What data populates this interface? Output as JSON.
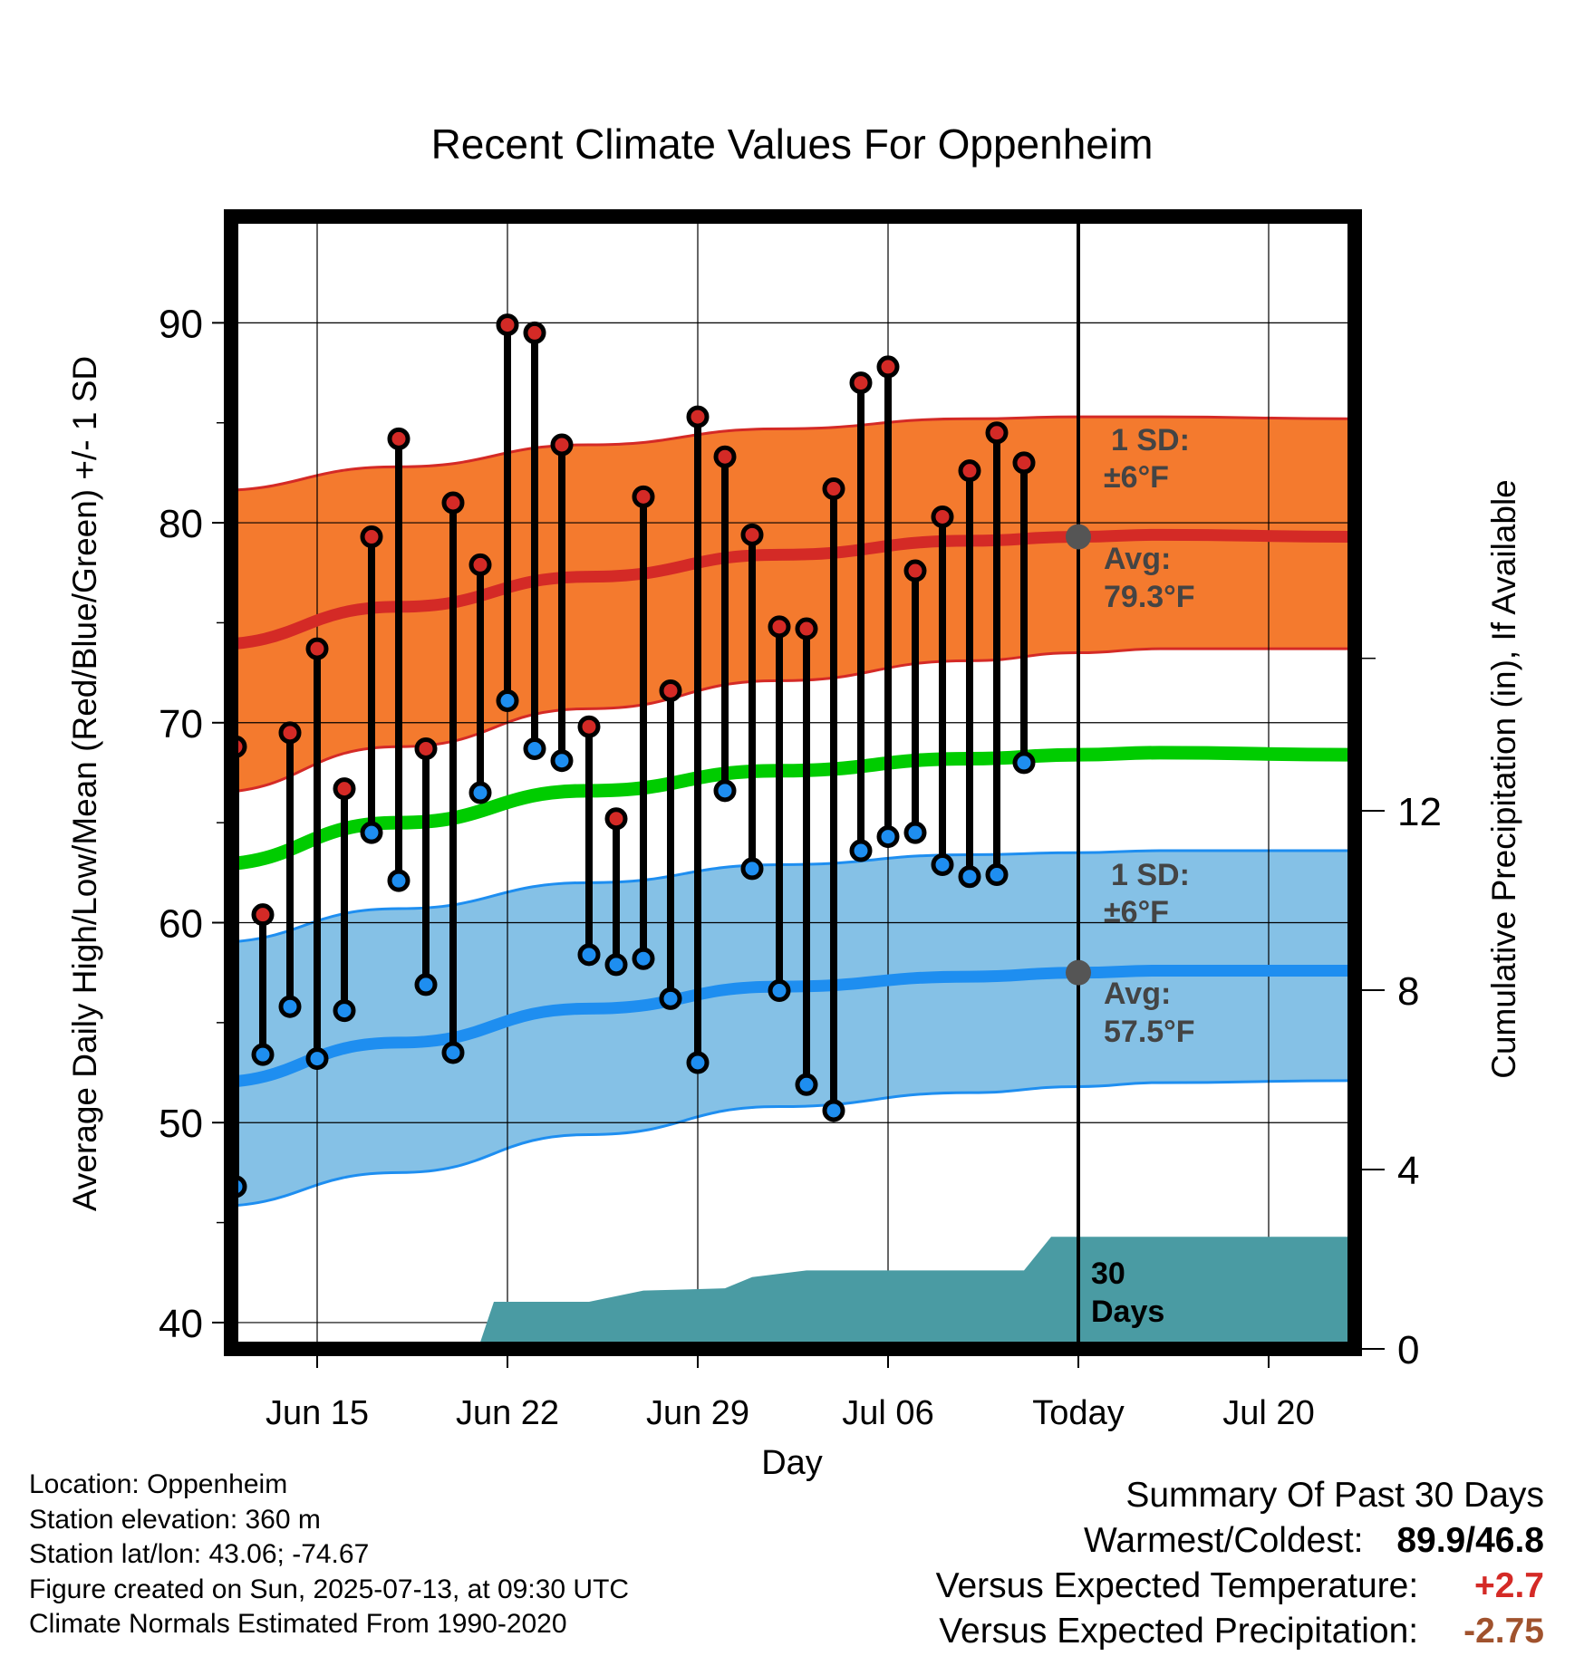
{
  "title": "Recent Climate Values For Oppenheim",
  "colors": {
    "high_band": "#F47A2E",
    "high_avg": "#D42A26",
    "low_band": "#85C1E6",
    "low_avg": "#1E8EF0",
    "mean_avg": "#00CC00",
    "precip_fill": "#4A9BA3",
    "high_marker": "#D42A26",
    "low_marker": "#1E8EF0",
    "annotation_text": "#444444",
    "temp_anomaly": "#D42A26",
    "precip_anomaly": "#A0522D"
  },
  "chart_data": {
    "type": "line",
    "title": "Recent Climate Values For Oppenheim",
    "xlabel": "Day",
    "ylabel": "Average Daily High/Low/Mean (Red/Blue/Green) +/- 1 SD",
    "y2label": "Cumulative Precipitation (in), If Available",
    "ylim": [
      39,
      95
    ],
    "y2lim": [
      0,
      25
    ],
    "xlim": [
      "2025-06-11",
      "2025-07-23"
    ],
    "grid": true,
    "x_ticks": [
      {
        "date": "2025-06-15",
        "label": "Jun 15"
      },
      {
        "date": "2025-06-22",
        "label": "Jun 22"
      },
      {
        "date": "2025-06-29",
        "label": "Jun 29"
      },
      {
        "date": "2025-07-06",
        "label": "Jul 06"
      },
      {
        "date": "2025-07-13",
        "label": "Today"
      },
      {
        "date": "2025-07-20",
        "label": "Jul 20"
      }
    ],
    "y_ticks": [
      40,
      50,
      60,
      70,
      80,
      90
    ],
    "y2_ticks": [
      0,
      4,
      8,
      12
    ],
    "today": "2025-07-13",
    "normals": {
      "dates": [
        "2025-06-11",
        "2025-06-18",
        "2025-06-25",
        "2025-07-02",
        "2025-07-09",
        "2025-07-13",
        "2025-07-16",
        "2025-07-23"
      ],
      "high_avg": [
        73.9,
        75.8,
        77.3,
        78.4,
        79.1,
        79.3,
        79.4,
        79.3
      ],
      "high_sd_upper": [
        81.6,
        82.8,
        83.9,
        84.7,
        85.2,
        85.3,
        85.3,
        85.2
      ],
      "high_sd_lower": [
        66.5,
        68.8,
        70.7,
        72.1,
        73.1,
        73.5,
        73.7,
        73.7
      ],
      "mean_avg": [
        62.9,
        65.0,
        66.6,
        67.6,
        68.2,
        68.4,
        68.5,
        68.4
      ],
      "low_avg": [
        52.0,
        54.0,
        55.7,
        56.8,
        57.3,
        57.5,
        57.6,
        57.6
      ],
      "low_sd_upper": [
        59.0,
        60.7,
        62.0,
        62.9,
        63.4,
        63.5,
        63.6,
        63.6
      ],
      "low_sd_lower": [
        45.8,
        47.5,
        49.4,
        50.8,
        51.5,
        51.8,
        52.0,
        52.1
      ]
    },
    "daily": {
      "dates": [
        "2025-06-12",
        "2025-06-13",
        "2025-06-14",
        "2025-06-15",
        "2025-06-16",
        "2025-06-17",
        "2025-06-18",
        "2025-06-19",
        "2025-06-20",
        "2025-06-21",
        "2025-06-22",
        "2025-06-23",
        "2025-06-24",
        "2025-06-25",
        "2025-06-26",
        "2025-06-27",
        "2025-06-28",
        "2025-06-29",
        "2025-06-30",
        "2025-07-01",
        "2025-07-02",
        "2025-07-03",
        "2025-07-04",
        "2025-07-05",
        "2025-07-06",
        "2025-07-07",
        "2025-07-08",
        "2025-07-09",
        "2025-07-10",
        "2025-07-11",
        "2025-07-12"
      ],
      "high": [
        68.8,
        60.4,
        69.5,
        73.7,
        66.7,
        79.3,
        84.2,
        68.7,
        81.0,
        77.9,
        89.9,
        89.5,
        83.9,
        69.8,
        65.2,
        81.3,
        71.6,
        85.3,
        83.3,
        79.4,
        74.8,
        74.7,
        81.7,
        87.0,
        87.8,
        77.6,
        80.3,
        82.6,
        84.5,
        83.0,
        null
      ],
      "low": [
        46.8,
        53.4,
        55.8,
        53.2,
        55.6,
        64.5,
        62.1,
        56.9,
        53.5,
        66.5,
        71.1,
        68.7,
        68.1,
        58.4,
        57.9,
        58.2,
        56.2,
        53.0,
        66.6,
        62.7,
        56.6,
        51.9,
        50.6,
        63.6,
        64.3,
        64.5,
        62.9,
        62.3,
        62.4,
        68.0,
        null
      ]
    },
    "precip_cumulative": {
      "dates": [
        "2025-06-11",
        "2025-06-15",
        "2025-06-15.5",
        "2025-06-17",
        "2025-06-20",
        "2025-06-21",
        "2025-06-21.5",
        "2025-06-25",
        "2025-06-27",
        "2025-06-30",
        "2025-07-01",
        "2025-07-03",
        "2025-07-05",
        "2025-07-11",
        "2025-07-12",
        "2025-07-23"
      ],
      "values": [
        0.0,
        0.0,
        0.05,
        0.1,
        0.15,
        0.15,
        1.05,
        1.05,
        1.3,
        1.35,
        1.6,
        1.75,
        1.75,
        1.75,
        2.5,
        2.5
      ]
    },
    "annotations": {
      "high_sd": "1 SD:",
      "high_sd_value": "±6°F",
      "high_avg_label": "Avg:",
      "high_avg_value": "79.3°F",
      "low_sd": "1 SD:",
      "low_sd_value": "±6°F",
      "low_avg_label": "Avg:",
      "low_avg_value": "57.5°F",
      "days_count": "30",
      "days_label": "Days"
    }
  },
  "footer": {
    "location": "Location: Oppenheim",
    "elevation": "Station elevation: 360 m",
    "latlon": "Station lat/lon: 43.06; -74.67",
    "created": "Figure created on Sun, 2025-07-13, at 09:30 UTC",
    "normals": "Climate Normals Estimated From 1990-2020"
  },
  "summary": {
    "heading": "Summary Of Past 30 Days",
    "warm_cold_label": "Warmest/Coldest:",
    "warmest": "89.9",
    "separator": "/",
    "coldest": "46.8",
    "temp_label": "Versus Expected Temperature:",
    "temp_value": "+2.7",
    "precip_label": "Versus Expected Precipitation:",
    "precip_value": "-2.75"
  }
}
